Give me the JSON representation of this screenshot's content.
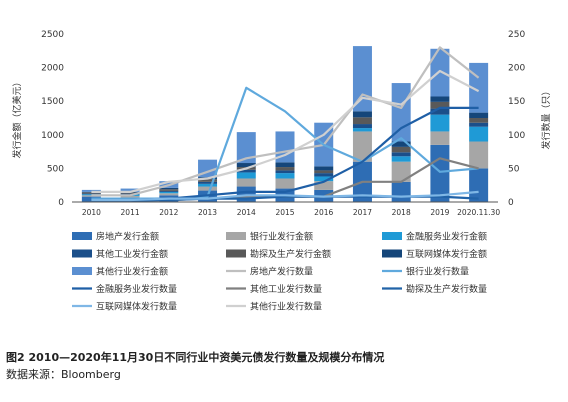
{
  "caption": {
    "title": "图2 2010—2020年11月30日不同行业中资美元债发行数量及规模分布情况",
    "source": "数据来源：Bloomberg"
  },
  "chart_data": {
    "type": "bar",
    "stacked": true,
    "categories": [
      "2010",
      "2011",
      "2012",
      "2013",
      "2014",
      "2015",
      "2016",
      "2017",
      "2018",
      "2019",
      "2020.11.30"
    ],
    "ylabel_left": "发行金额（亿美元）",
    "ylabel_right": "发行数量（只）",
    "ylim_left": [
      0,
      2500
    ],
    "ylim_right": [
      0,
      250
    ],
    "yticks_left": [
      0,
      500,
      1000,
      1500,
      2000,
      2500
    ],
    "yticks_right": [
      0,
      50,
      100,
      150,
      200,
      250
    ],
    "grid": false,
    "legend_position": "bottom",
    "bar_series": [
      {
        "name": "房地产发行金额",
        "color": "#2e6db4",
        "values": [
          80,
          60,
          100,
          170,
          230,
          200,
          180,
          600,
          300,
          850,
          500
        ]
      },
      {
        "name": "银行业发行金额",
        "color": "#a6a6a6",
        "values": [
          20,
          30,
          30,
          60,
          120,
          150,
          130,
          450,
          300,
          200,
          400
        ]
      },
      {
        "name": "金融服务业发行金额",
        "color": "#1f9ad6",
        "values": [
          15,
          20,
          20,
          40,
          90,
          80,
          70,
          50,
          80,
          250,
          220
        ]
      },
      {
        "name": "其他工业发行金额",
        "color": "#1b4f8a",
        "values": [
          10,
          15,
          15,
          30,
          40,
          40,
          50,
          60,
          60,
          90,
          60
        ]
      },
      {
        "name": "勘探及生产发行金额",
        "color": "#595959",
        "values": [
          20,
          15,
          25,
          40,
          40,
          50,
          40,
          100,
          80,
          100,
          70
        ]
      },
      {
        "name": "互联网媒体发行金额",
        "color": "#15467a",
        "values": [
          5,
          10,
          20,
          30,
          60,
          70,
          60,
          90,
          80,
          80,
          80
        ]
      },
      {
        "name": "其他行业发行金额",
        "color": "#5b8fd1",
        "values": [
          30,
          50,
          100,
          260,
          460,
          460,
          650,
          970,
          870,
          710,
          740
        ]
      }
    ],
    "line_series": [
      {
        "name": "房地产发行数量",
        "color": "#bfbfbf",
        "values": [
          10,
          10,
          25,
          45,
          65,
          75,
          85,
          160,
          140,
          230,
          185
        ]
      },
      {
        "name": "银行业发行数量",
        "color": "#5fa9dd",
        "values": [
          5,
          5,
          5,
          8,
          170,
          135,
          85,
          60,
          95,
          45,
          50
        ]
      },
      {
        "name": "金融服务业发行数量",
        "color": "#1f5fa6",
        "values": [
          3,
          3,
          5,
          10,
          15,
          15,
          30,
          60,
          110,
          140,
          140
        ]
      },
      {
        "name": "其他工业发行数量",
        "color": "#808080",
        "values": [
          2,
          2,
          3,
          5,
          8,
          8,
          8,
          30,
          30,
          65,
          50
        ]
      },
      {
        "name": "勘探及生产发行数量",
        "color": "#2163a8",
        "values": [
          2,
          2,
          3,
          5,
          5,
          8,
          8,
          8,
          8,
          8,
          5
        ]
      },
      {
        "name": "互联网媒体发行数量",
        "color": "#7fb7e6",
        "values": [
          3,
          3,
          5,
          5,
          10,
          10,
          8,
          10,
          8,
          10,
          15
        ]
      },
      {
        "name": "其他行业发行数量",
        "color": "#d0d0d0",
        "values": [
          15,
          15,
          30,
          35,
          50,
          70,
          100,
          155,
          145,
          195,
          165
        ]
      }
    ],
    "legend_order": [
      "房地产发行金额",
      "银行业发行金额",
      "金融服务业发行金额",
      "其他工业发行金额",
      "勘探及生产发行金额",
      "互联网媒体发行金额",
      "其他行业发行金额",
      "房地产发行数量",
      "银行业发行数量",
      "金融服务业发行数量",
      "其他工业发行数量",
      "勘探及生产发行数量",
      "互联网媒体发行数量",
      "其他行业发行数量"
    ]
  }
}
